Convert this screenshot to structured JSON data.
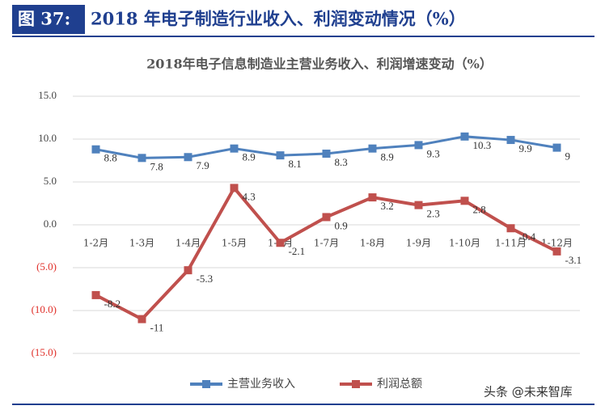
{
  "header": {
    "label": "图 37:",
    "title": "2018 年电子制造行业收入、利润变动情况（%）"
  },
  "watermark": "头条 @未来智库",
  "chart_data": {
    "type": "line",
    "title": "2018年电子信息制造业主营业务收入、利润增速变动（%）",
    "categories": [
      "1-2月",
      "1-3月",
      "1-4月",
      "1-5月",
      "1-6月",
      "1-7月",
      "1-8月",
      "1-9月",
      "1-10月",
      "1-11月",
      "1-12月"
    ],
    "series": [
      {
        "name": "主营业务收入",
        "color": "#4f81bd",
        "values": [
          8.8,
          7.8,
          7.9,
          8.9,
          8.1,
          8.3,
          8.9,
          9.3,
          10.3,
          9.9,
          9
        ]
      },
      {
        "name": "利润总额",
        "color": "#c0504d",
        "values": [
          -8.2,
          -11,
          -5.3,
          4.3,
          -2.1,
          0.9,
          3.2,
          2.3,
          2.8,
          -0.4,
          -3.1
        ]
      }
    ],
    "ylim": [
      -15,
      15
    ],
    "yticks": [
      {
        "value": -15,
        "label": "(15.0)"
      },
      {
        "value": -10,
        "label": "(10.0)"
      },
      {
        "value": -5,
        "label": "(5.0)"
      },
      {
        "value": 0,
        "label": "0.0"
      },
      {
        "value": 5,
        "label": "5.0"
      },
      {
        "value": 10,
        "label": "10.0"
      },
      {
        "value": 15,
        "label": "15.0"
      }
    ],
    "grid": true,
    "legend": "bottom"
  }
}
